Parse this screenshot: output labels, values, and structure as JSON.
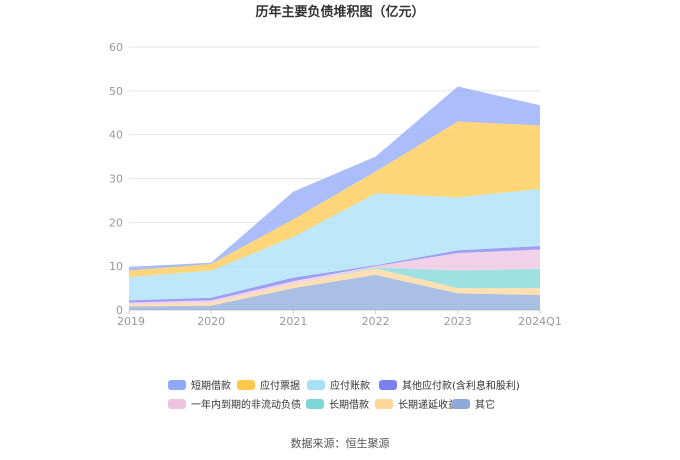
{
  "chart_data": {
    "type": "area",
    "stacked": true,
    "title": "历年主要负债堆积图（亿元）",
    "categories": [
      "2019",
      "2020",
      "2021",
      "2022",
      "2023",
      "2024Q1"
    ],
    "ylim": [
      0,
      60
    ],
    "yticks": [
      0,
      10,
      20,
      30,
      40,
      50,
      60
    ],
    "grid": true,
    "legend_position": "bottom",
    "series": [
      {
        "name": "其它",
        "color": "#8eaadb",
        "values": [
          0.8,
          1.0,
          5.0,
          8.0,
          3.8,
          3.4
        ]
      },
      {
        "name": "长期递延收益",
        "color": "#ffd699",
        "values": [
          0.5,
          0.6,
          1.0,
          1.5,
          1.2,
          1.6
        ]
      },
      {
        "name": "长期借款",
        "color": "#7fd6d6",
        "values": [
          0,
          0,
          0,
          0.2,
          4.0,
          4.4
        ]
      },
      {
        "name": "一年内到期的非流动负债",
        "color": "#eec3e2",
        "values": [
          0.4,
          0.6,
          0.6,
          0.3,
          4.0,
          4.4
        ]
      },
      {
        "name": "其他应付款(含利息和股利)",
        "color": "#7b7ff0",
        "values": [
          0.5,
          0.6,
          0.8,
          0.2,
          0.6,
          0.8
        ]
      },
      {
        "name": "应付账款",
        "color": "#a8e0f7",
        "values": [
          5.3,
          6.2,
          9.3,
          16.4,
          12.1,
          13.0
        ]
      },
      {
        "name": "应付票据",
        "color": "#ffc84c",
        "values": [
          1.5,
          1.5,
          4.0,
          5.0,
          17.3,
          14.5
        ]
      },
      {
        "name": "短期借款",
        "color": "#8fa8f8",
        "values": [
          0.8,
          0.3,
          6.3,
          3.4,
          8.0,
          4.6
        ]
      }
    ],
    "legend_order": [
      "短期借款",
      "应付票据",
      "应付账款",
      "其他应付款(含利息和股利)",
      "一年内到期的非流动负债",
      "长期借款",
      "长期递延收益",
      "其它"
    ]
  },
  "source_text": "数据来源：恒生聚源"
}
